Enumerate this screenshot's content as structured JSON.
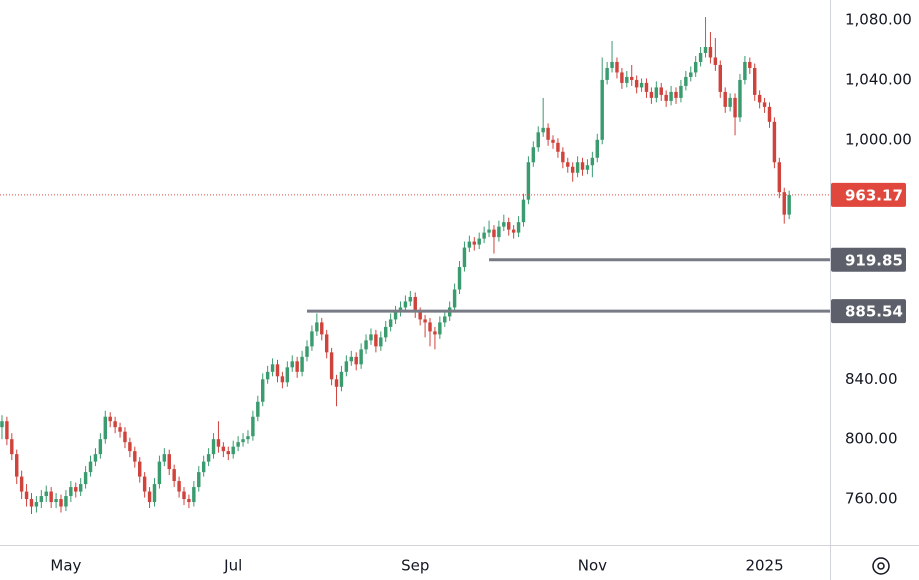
{
  "chart_data": {
    "type": "candlestick",
    "up_color": "#3a9b6e",
    "down_color": "#d0433d",
    "grid": false,
    "ylim": [
      729.3,
      1093.4
    ],
    "yticks": [
      {
        "value": 760,
        "label": "760.00"
      },
      {
        "value": 800,
        "label": "800.00"
      },
      {
        "value": 840,
        "label": "840.00"
      },
      {
        "value": 1000,
        "label": "1,000.00"
      },
      {
        "value": 1040,
        "label": "1,040.00"
      },
      {
        "value": 1080,
        "label": "1,080.00"
      }
    ],
    "xlim": [
      -0.4,
      168.3
    ],
    "xticks": [
      {
        "value": 13,
        "label": "May"
      },
      {
        "value": 47,
        "label": "Jul"
      },
      {
        "value": 84,
        "label": "Sep"
      },
      {
        "value": 120,
        "label": "Nov"
      },
      {
        "value": 155,
        "label": "2025"
      }
    ],
    "last_price": 963.17,
    "last_price_color": "#e0483e",
    "levels": [
      {
        "value": 919.85,
        "start": 99,
        "color": "#787b86"
      },
      {
        "value": 885.54,
        "start": 62,
        "color": "#787b86"
      }
    ],
    "candles": [
      [
        808,
        816,
        800,
        812
      ],
      [
        812,
        815,
        796,
        800
      ],
      [
        800,
        804,
        786,
        790
      ],
      [
        790,
        793,
        770,
        775
      ],
      [
        775,
        779,
        760,
        765
      ],
      [
        765,
        770,
        755,
        760
      ],
      [
        760,
        764,
        750,
        755
      ],
      [
        755,
        762,
        751,
        758
      ],
      [
        758,
        766,
        754,
        762
      ],
      [
        762,
        769,
        758,
        765
      ],
      [
        765,
        768,
        754,
        758
      ],
      [
        758,
        764,
        754,
        760
      ],
      [
        760,
        763,
        751,
        755
      ],
      [
        755,
        766,
        752,
        762
      ],
      [
        762,
        772,
        758,
        768
      ],
      [
        768,
        771,
        761,
        765
      ],
      [
        765,
        774,
        762,
        770
      ],
      [
        770,
        782,
        767,
        778
      ],
      [
        778,
        789,
        775,
        785
      ],
      [
        785,
        794,
        782,
        790
      ],
      [
        790,
        804,
        787,
        800
      ],
      [
        800,
        819,
        797,
        815
      ],
      [
        815,
        818,
        808,
        812
      ],
      [
        812,
        815,
        804,
        808
      ],
      [
        808,
        811,
        801,
        805
      ],
      [
        805,
        808,
        794,
        798
      ],
      [
        798,
        801,
        788,
        792
      ],
      [
        792,
        795,
        781,
        785
      ],
      [
        785,
        788,
        771,
        775
      ],
      [
        775,
        778,
        761,
        765
      ],
      [
        765,
        768,
        754,
        758
      ],
      [
        758,
        774,
        755,
        770
      ],
      [
        770,
        789,
        767,
        785
      ],
      [
        785,
        794,
        782,
        790
      ],
      [
        790,
        793,
        776,
        780
      ],
      [
        780,
        783,
        768,
        772
      ],
      [
        772,
        775,
        761,
        765
      ],
      [
        765,
        768,
        756,
        760
      ],
      [
        760,
        763,
        754,
        758
      ],
      [
        758,
        772,
        755,
        768
      ],
      [
        768,
        782,
        765,
        778
      ],
      [
        778,
        789,
        775,
        785
      ],
      [
        785,
        794,
        782,
        790
      ],
      [
        790,
        804,
        787,
        800
      ],
      [
        800,
        812,
        791,
        795
      ],
      [
        795,
        798,
        788,
        792
      ],
      [
        792,
        795,
        786,
        790
      ],
      [
        790,
        799,
        787,
        795
      ],
      [
        795,
        802,
        792,
        798
      ],
      [
        798,
        804,
        795,
        800
      ],
      [
        800,
        806,
        797,
        802
      ],
      [
        802,
        819,
        799,
        815
      ],
      [
        815,
        829,
        812,
        825
      ],
      [
        825,
        844,
        822,
        840
      ],
      [
        840,
        849,
        837,
        845
      ],
      [
        845,
        854,
        842,
        850
      ],
      [
        850,
        853,
        838,
        842
      ],
      [
        842,
        845,
        834,
        838
      ],
      [
        838,
        852,
        835,
        848
      ],
      [
        848,
        856,
        845,
        852
      ],
      [
        852,
        855,
        841,
        845
      ],
      [
        845,
        859,
        842,
        855
      ],
      [
        855,
        866,
        852,
        862
      ],
      [
        862,
        876,
        859,
        872
      ],
      [
        872,
        884,
        869,
        878
      ],
      [
        878,
        881,
        866,
        870
      ],
      [
        870,
        873,
        854,
        858
      ],
      [
        858,
        861,
        836,
        840
      ],
      [
        840,
        843,
        822,
        835
      ],
      [
        835,
        849,
        832,
        845
      ],
      [
        845,
        856,
        842,
        852
      ],
      [
        852,
        859,
        849,
        855
      ],
      [
        855,
        858,
        846,
        850
      ],
      [
        850,
        864,
        847,
        860
      ],
      [
        860,
        870,
        857,
        866
      ],
      [
        866,
        874,
        863,
        870
      ],
      [
        870,
        873,
        858,
        862
      ],
      [
        862,
        872,
        859,
        868
      ],
      [
        868,
        879,
        865,
        875
      ],
      [
        875,
        884,
        872,
        880
      ],
      [
        880,
        889,
        877,
        885
      ],
      [
        885,
        892,
        882,
        888
      ],
      [
        888,
        896,
        885,
        892
      ],
      [
        892,
        899,
        889,
        895
      ],
      [
        895,
        898,
        881,
        885
      ],
      [
        885,
        888,
        876,
        880
      ],
      [
        880,
        883,
        868,
        878
      ],
      [
        878,
        881,
        862,
        872
      ],
      [
        872,
        875,
        860,
        870
      ],
      [
        870,
        882,
        867,
        878
      ],
      [
        878,
        886,
        875,
        882
      ],
      [
        882,
        892,
        879,
        888
      ],
      [
        888,
        904,
        885,
        900
      ],
      [
        900,
        919,
        897,
        915
      ],
      [
        915,
        932,
        912,
        928
      ],
      [
        928,
        936,
        925,
        932
      ],
      [
        932,
        935,
        926,
        930
      ],
      [
        930,
        938,
        927,
        934
      ],
      [
        934,
        942,
        931,
        938
      ],
      [
        938,
        946,
        935,
        940
      ],
      [
        940,
        943,
        924,
        935
      ],
      [
        935,
        946,
        932,
        942
      ],
      [
        942,
        950,
        939,
        945
      ],
      [
        945,
        948,
        936,
        940
      ],
      [
        940,
        943,
        934,
        938
      ],
      [
        938,
        949,
        935,
        945
      ],
      [
        945,
        964,
        942,
        960
      ],
      [
        960,
        989,
        957,
        985
      ],
      [
        985,
        999,
        982,
        995
      ],
      [
        995,
        1009,
        992,
        1005
      ],
      [
        1005,
        1028,
        1002,
        1008
      ],
      [
        1008,
        1011,
        996,
        1000
      ],
      [
        1000,
        1003,
        994,
        998
      ],
      [
        998,
        1001,
        988,
        992
      ],
      [
        992,
        995,
        981,
        985
      ],
      [
        985,
        988,
        978,
        982
      ],
      [
        982,
        985,
        972,
        978
      ],
      [
        978,
        989,
        975,
        985
      ],
      [
        985,
        988,
        976,
        980
      ],
      [
        980,
        987,
        977,
        983
      ],
      [
        983,
        992,
        975,
        988
      ],
      [
        988,
        1004,
        985,
        1000
      ],
      [
        1000,
        1055,
        997,
        1040
      ],
      [
        1040,
        1052,
        1037,
        1048
      ],
      [
        1048,
        1066,
        1045,
        1052
      ],
      [
        1052,
        1055,
        1041,
        1045
      ],
      [
        1045,
        1048,
        1034,
        1038
      ],
      [
        1038,
        1046,
        1035,
        1042
      ],
      [
        1042,
        1050,
        1036,
        1040
      ],
      [
        1040,
        1043,
        1031,
        1035
      ],
      [
        1035,
        1041,
        1032,
        1038
      ],
      [
        1038,
        1041,
        1028,
        1032
      ],
      [
        1032,
        1035,
        1024,
        1028
      ],
      [
        1028,
        1039,
        1025,
        1035
      ],
      [
        1035,
        1038,
        1026,
        1030
      ],
      [
        1030,
        1033,
        1022,
        1026
      ],
      [
        1026,
        1036,
        1023,
        1032
      ],
      [
        1032,
        1035,
        1024,
        1028
      ],
      [
        1028,
        1040,
        1025,
        1036
      ],
      [
        1036,
        1046,
        1033,
        1042
      ],
      [
        1042,
        1049,
        1039,
        1045
      ],
      [
        1045,
        1056,
        1042,
        1052
      ],
      [
        1052,
        1062,
        1049,
        1058
      ],
      [
        1058,
        1082,
        1055,
        1062
      ],
      [
        1062,
        1072,
        1051,
        1055
      ],
      [
        1055,
        1068,
        1046,
        1050
      ],
      [
        1050,
        1053,
        1028,
        1032
      ],
      [
        1032,
        1035,
        1018,
        1022
      ],
      [
        1022,
        1031,
        1019,
        1028
      ],
      [
        1028,
        1031,
        1003,
        1015
      ],
      [
        1015,
        1044,
        1012,
        1040
      ],
      [
        1040,
        1056,
        1037,
        1052
      ],
      [
        1052,
        1055,
        1044,
        1048
      ],
      [
        1048,
        1051,
        1026,
        1030
      ],
      [
        1030,
        1033,
        1021,
        1025
      ],
      [
        1025,
        1028,
        1018,
        1022
      ],
      [
        1022,
        1025,
        1008,
        1012
      ],
      [
        1012,
        1015,
        981,
        985
      ],
      [
        985,
        988,
        961,
        965
      ],
      [
        965,
        968,
        944,
        950
      ],
      [
        950,
        966,
        947,
        963.17
      ]
    ]
  }
}
